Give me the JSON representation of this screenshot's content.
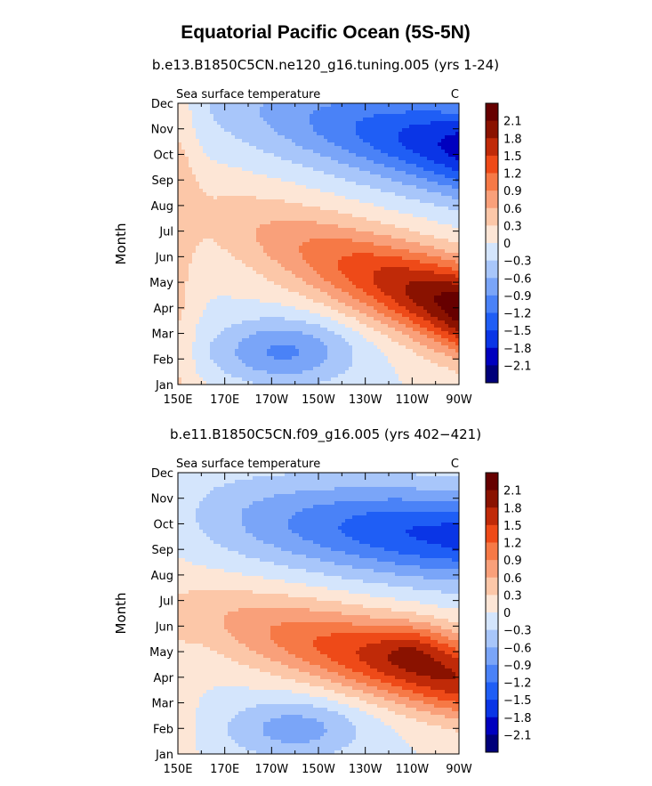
{
  "figure": {
    "title": "Equatorial Pacific Ocean (5S-5N)"
  },
  "chart_data": [
    {
      "type": "heatmap",
      "subtitle": "b.e13.B1850C5CN.ne120_g16.tuning.005 (yrs 1-24)",
      "variable": "Sea surface temperature",
      "units": "C",
      "ylabel": "Month",
      "xlabel": "",
      "x_ticks": [
        "150E",
        "170E",
        "170W",
        "150W",
        "130W",
        "110W",
        "90W"
      ],
      "y_ticks": [
        "Jan",
        "Feb",
        "Mar",
        "Apr",
        "May",
        "Jun",
        "Jul",
        "Aug",
        "Sep",
        "Oct",
        "Nov",
        "Dec"
      ],
      "xlim_deg_east": [
        150,
        270
      ],
      "colorbar_levels": [
        "2.1",
        "1.8",
        "1.5",
        "1.2",
        "0.9",
        "0.6",
        "0.3",
        "0",
        "−0.3",
        "−0.6",
        "−0.9",
        "−1.2",
        "−1.5",
        "−1.8",
        "−2.1"
      ],
      "features": {
        "warm_max_C": 2.3,
        "warm_peak_month": "Apr",
        "warm_peak_lon_deg_east": 268,
        "cold_min_C": -1.9,
        "cold_peak_month": "Oct",
        "cold_peak_lon_deg_east": 255
      }
    },
    {
      "type": "heatmap",
      "subtitle": "b.e11.B1850C5CN.f09_g16.005 (yrs 402−421)",
      "variable": "Sea surface temperature",
      "units": "C",
      "ylabel": "Month",
      "xlabel": "",
      "x_ticks": [
        "150E",
        "170E",
        "170W",
        "150W",
        "130W",
        "110W",
        "90W"
      ],
      "y_ticks": [
        "Jan",
        "Feb",
        "Mar",
        "Apr",
        "May",
        "Jun",
        "Jul",
        "Aug",
        "Sep",
        "Oct",
        "Nov",
        "Dec"
      ],
      "xlim_deg_east": [
        150,
        270
      ],
      "colorbar_levels": [
        "2.1",
        "1.8",
        "1.5",
        "1.2",
        "0.9",
        "0.6",
        "0.3",
        "0",
        "−0.3",
        "−0.6",
        "−0.9",
        "−1.2",
        "−1.5",
        "−1.8",
        "−2.1"
      ],
      "features": {
        "warm_max_C": 2.2,
        "warm_peak_month": "May",
        "warm_peak_lon_deg_east": 250,
        "cold_min_C": -1.8,
        "cold_peak_month": "Sep",
        "cold_peak_lon_deg_east": 255
      }
    }
  ],
  "colors": {
    "palette": [
      "#00007a",
      "#0000bf",
      "#0a35e6",
      "#1f5ef5",
      "#4a82f7",
      "#7aa5f8",
      "#a8c6fa",
      "#d4e5fc",
      "#fde6d6",
      "#fcc7a8",
      "#f9a07a",
      "#f67946",
      "#ee4a18",
      "#c02a08",
      "#8a1200",
      "#660000"
    ]
  }
}
